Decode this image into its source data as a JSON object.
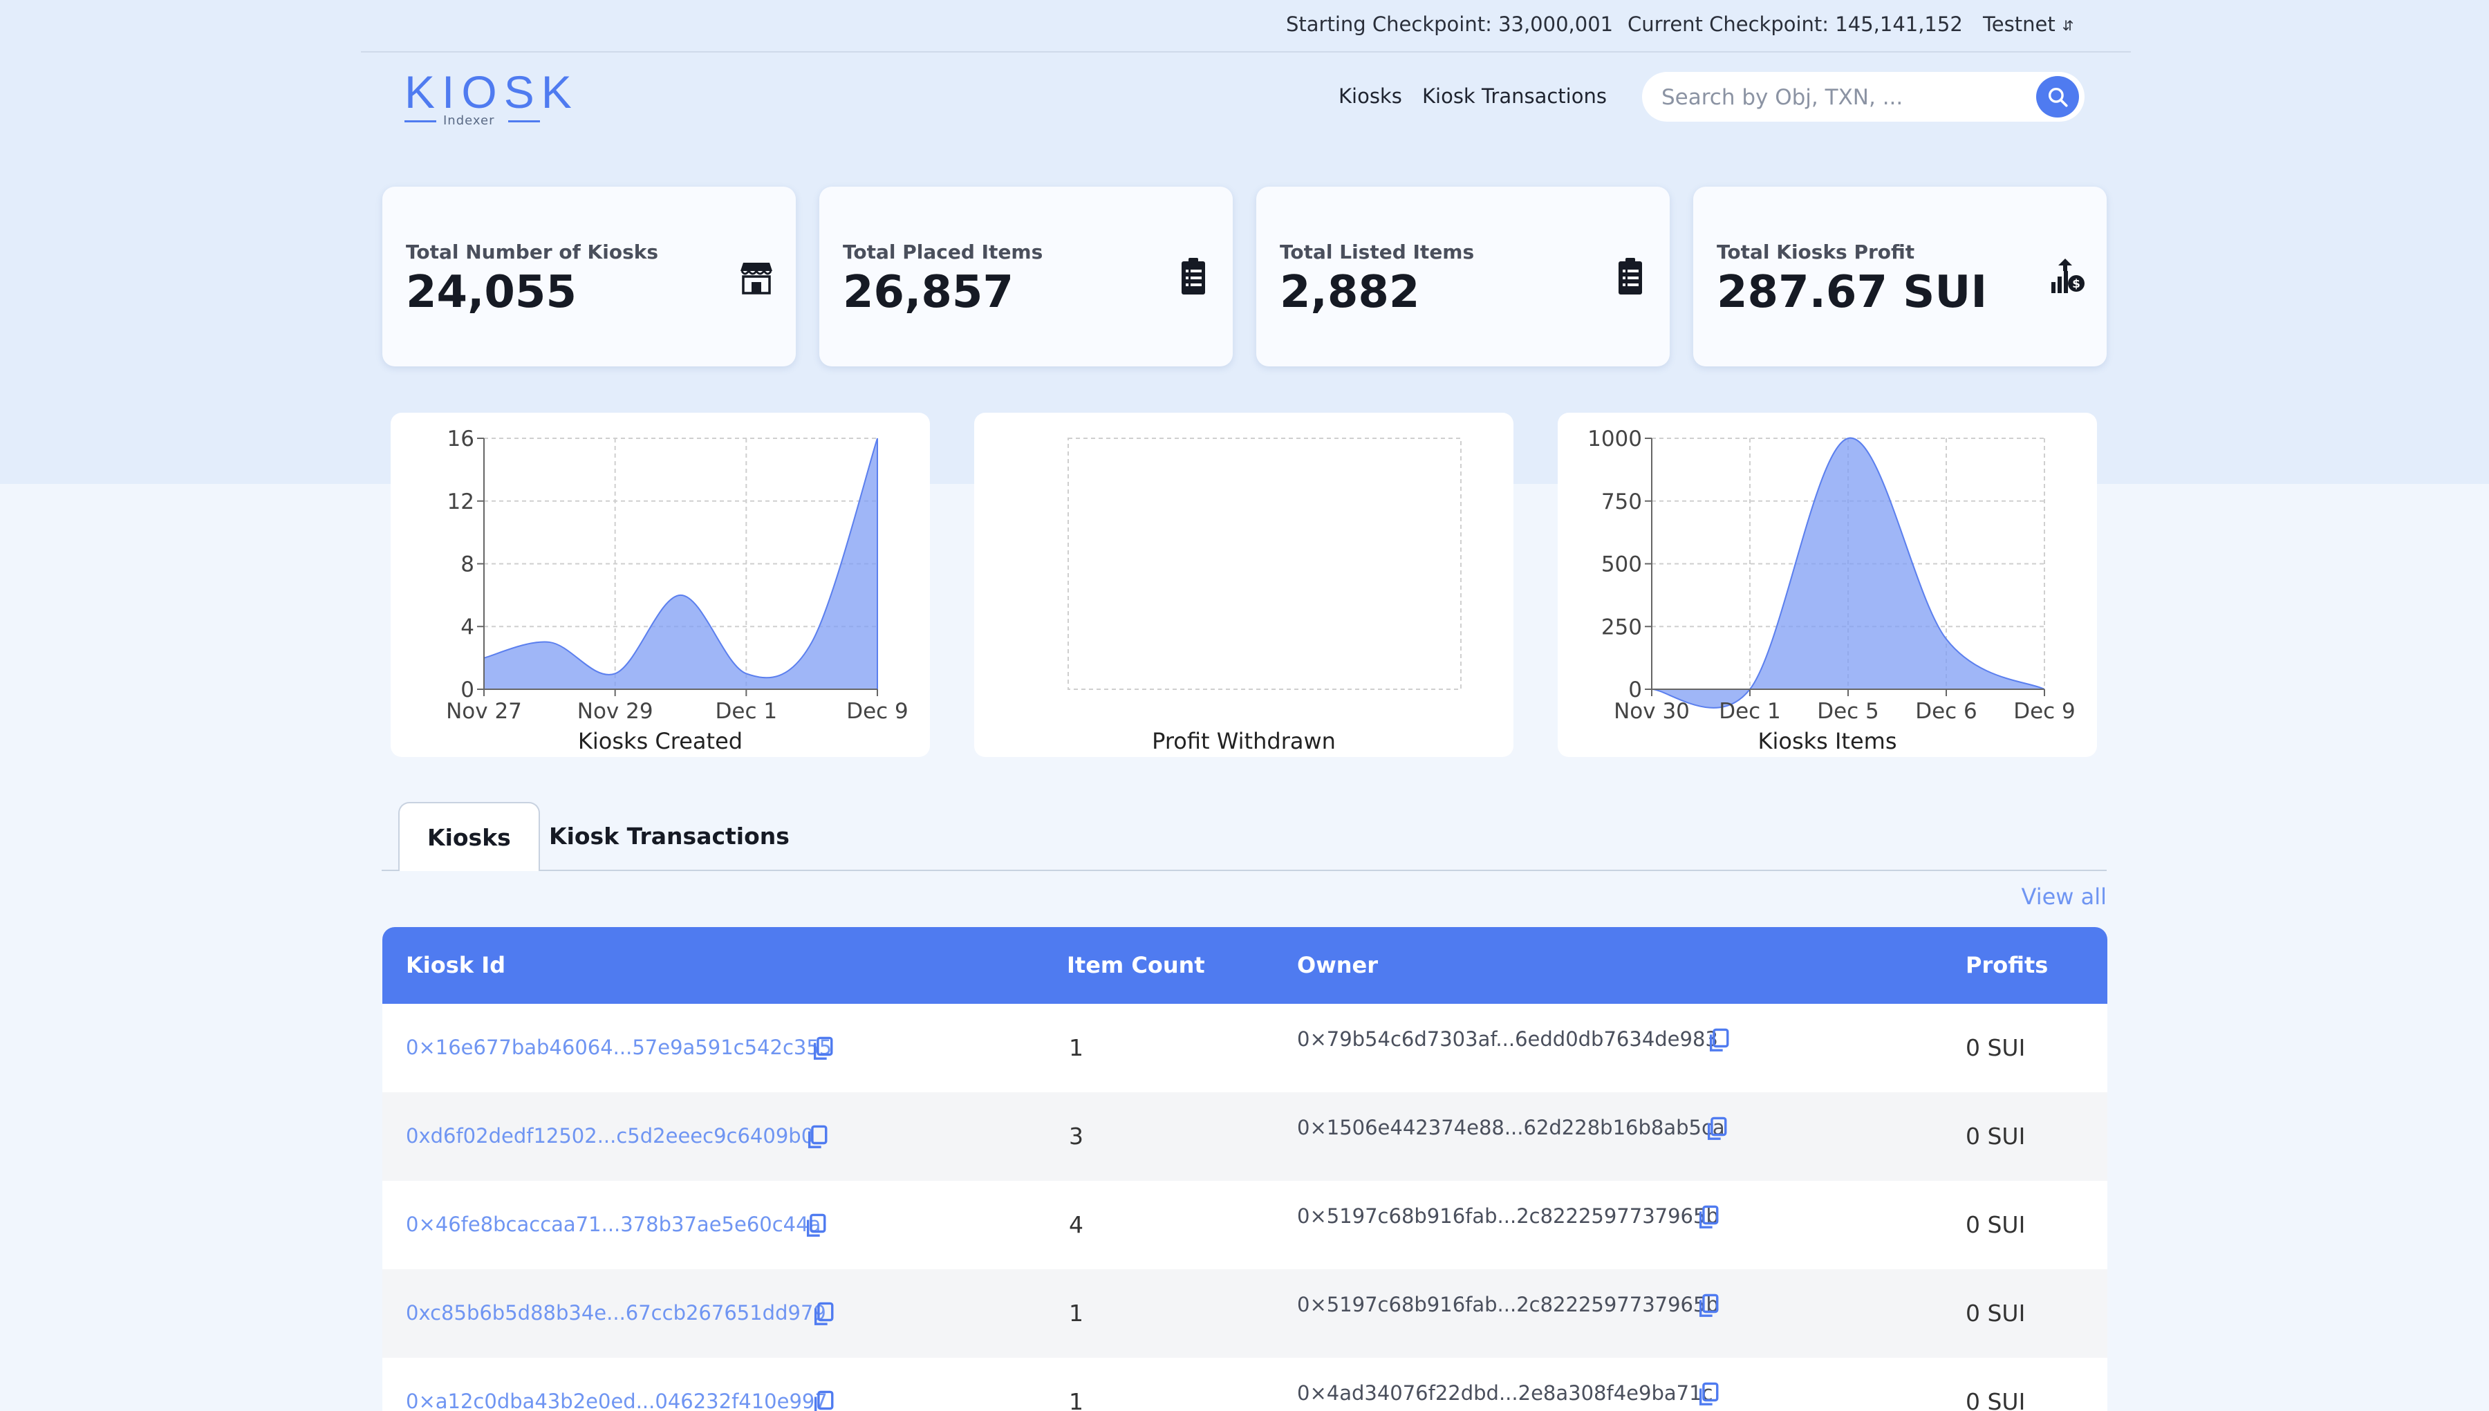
{
  "topbar": {
    "starting_checkpoint": "Starting Checkpoint: 33,000,001",
    "current_checkpoint": "Current Checkpoint: 145,141,152",
    "network": "Testnet"
  },
  "logo": {
    "word": "KIOSK",
    "sub": "Indexer"
  },
  "nav": {
    "kiosks": "Kiosks",
    "kiosk_transactions": "Kiosk Transactions"
  },
  "search": {
    "placeholder": "Search by Obj, TXN, ..."
  },
  "stats": [
    {
      "label": "Total Number of Kiosks",
      "value": "24,055",
      "icon": "store-icon"
    },
    {
      "label": "Total Placed Items",
      "value": "26,857",
      "icon": "clipboard-list-icon"
    },
    {
      "label": "Total Listed Items",
      "value": "2,882",
      "icon": "clipboard-list-icon"
    },
    {
      "label": "Total Kiosks Profit",
      "value": "287.67 SUI",
      "icon": "profit-growth-icon"
    }
  ],
  "chart_data": [
    {
      "type": "area",
      "title": "Kiosks Created",
      "x": [
        "Nov 27",
        "Nov 28",
        "Nov 29",
        "Nov 30",
        "Dec 1",
        "Dec 5",
        "Dec 9"
      ],
      "values": [
        2,
        3,
        1,
        6,
        1,
        3,
        16
      ],
      "x_ticks": [
        "Nov 27",
        "Nov 29",
        "Dec 1",
        "Dec 9"
      ],
      "y_ticks": [
        0,
        4,
        8,
        12,
        16
      ],
      "ylim": [
        0,
        16
      ],
      "color": "#7f9ef4"
    },
    {
      "type": "area",
      "title": "Profit Withdrawn",
      "x": [],
      "values": [],
      "x_ticks": [],
      "y_ticks": []
    },
    {
      "type": "area",
      "title": "Kiosks Items",
      "x": [
        "Nov 30",
        "Dec 1",
        "Dec 5",
        "Dec 6",
        "Dec 9"
      ],
      "values": [
        0,
        0,
        1000,
        200,
        0
      ],
      "x_ticks": [
        "Nov 30",
        "Dec 1",
        "Dec 5",
        "Dec 6",
        "Dec 9"
      ],
      "y_ticks": [
        0,
        250,
        500,
        750,
        1000
      ],
      "ylim": [
        0,
        1000
      ],
      "color": "#7f9ef4"
    }
  ],
  "tabs": [
    {
      "label": "Kiosks",
      "active": true
    },
    {
      "label": "Kiosk Transactions",
      "active": false
    }
  ],
  "view_all": "View all",
  "table": {
    "headers": {
      "kiosk_id": "Kiosk Id",
      "item_count": "Item Count",
      "owner": "Owner",
      "profits": "Profits"
    },
    "rows": [
      {
        "kiosk_id": "0×16e677bab46064...57e9a591c542c355",
        "item_count": "1",
        "owner": "0×79b54c6d7303af...6edd0db7634de983",
        "profits": "0 SUI"
      },
      {
        "kiosk_id": "0xd6f02dedf12502...c5d2eeec9c6409b0",
        "item_count": "3",
        "owner": "0×1506e442374e88...62d228b16b8ab5ca",
        "profits": "0 SUI"
      },
      {
        "kiosk_id": "0×46fe8bcaccaa71...378b37ae5e60c44a",
        "item_count": "4",
        "owner": "0×5197c68b916fab...2c8222597737965b",
        "profits": "0 SUI"
      },
      {
        "kiosk_id": "0xc85b6b5d88b34e...67ccb267651dd979",
        "item_count": "1",
        "owner": "0×5197c68b916fab...2c8222597737965b",
        "profits": "0 SUI"
      },
      {
        "kiosk_id": "0×a12c0dba43b2e0ed...046232f410e997",
        "item_count": "1",
        "owner": "0×4ad34076f22dbd...2e8a308f4e9ba71c",
        "profits": "0 SUI"
      }
    ]
  }
}
